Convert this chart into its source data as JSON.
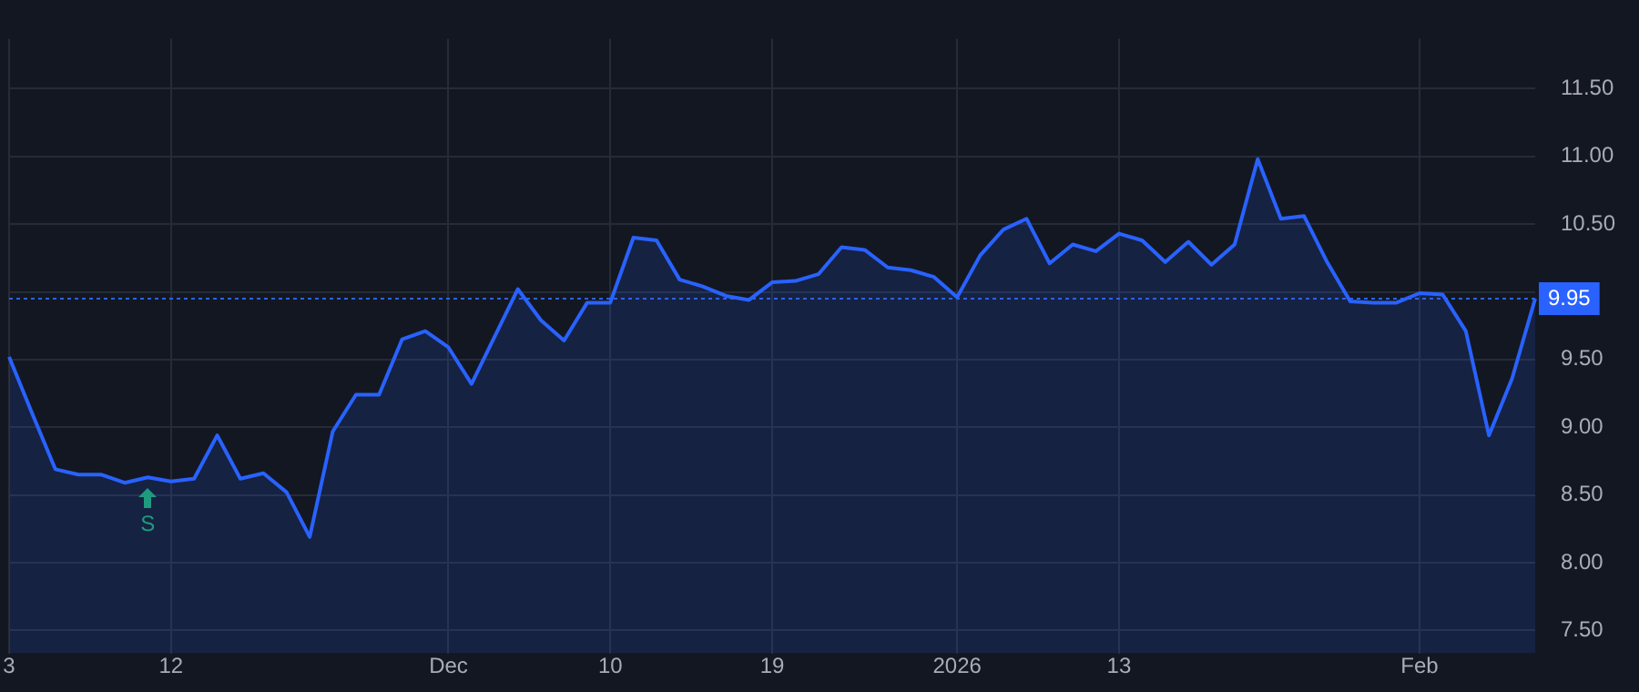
{
  "chart_data": {
    "type": "area",
    "categories": [
      "3",
      null,
      null,
      null,
      null,
      null,
      null,
      "12",
      null,
      null,
      null,
      null,
      null,
      null,
      null,
      null,
      null,
      null,
      null,
      "Dec",
      null,
      null,
      null,
      null,
      null,
      null,
      "10",
      null,
      null,
      null,
      null,
      null,
      null,
      "19",
      null,
      null,
      null,
      null,
      null,
      null,
      null,
      "2026",
      null,
      null,
      null,
      null,
      null,
      null,
      "13",
      null,
      null,
      null,
      null,
      null,
      null,
      null,
      null,
      null,
      null,
      null,
      null,
      "Feb",
      null,
      null,
      null,
      null,
      null
    ],
    "series": [
      {
        "color": "#2962ff",
        "values": [
          9.52,
          9.1,
          8.69,
          8.65,
          8.65,
          8.59,
          8.63,
          8.6,
          8.62,
          8.94,
          8.62,
          8.66,
          8.52,
          8.19,
          8.97,
          9.24,
          9.24,
          9.65,
          9.71,
          9.59,
          9.32,
          9.67,
          10.02,
          9.79,
          9.64,
          9.92,
          9.92,
          10.4,
          10.38,
          10.09,
          10.04,
          9.97,
          9.94,
          10.07,
          10.08,
          10.13,
          10.33,
          10.31,
          10.18,
          10.16,
          10.11,
          9.96,
          10.27,
          10.46,
          10.54,
          10.21,
          10.35,
          10.3,
          10.43,
          10.38,
          10.22,
          10.37,
          10.2,
          10.35,
          10.98,
          10.54,
          10.56,
          10.22,
          9.93,
          9.92,
          9.92,
          9.99,
          9.98,
          9.71,
          8.94,
          9.36,
          9.95
        ]
      }
    ],
    "ylim": [
      7.33,
      11.87
    ],
    "yticks": [
      {
        "value": 7.5,
        "label": "7.50"
      },
      {
        "value": 8,
        "label": "8.00"
      },
      {
        "value": 8.5,
        "label": "8.50"
      },
      {
        "value": 9,
        "label": "9.00"
      },
      {
        "value": 9.5,
        "label": "9.50"
      },
      {
        "value": 10,
        "label": null
      },
      {
        "value": 10.5,
        "label": "10.50"
      },
      {
        "value": 11,
        "label": "11.00"
      },
      {
        "value": 11.5,
        "label": "11.50"
      }
    ],
    "ref_lines": [
      {
        "axis": "y",
        "value": 9.95,
        "label": "9.95",
        "color": "#2962ff",
        "line_style": "dotted"
      }
    ],
    "annotations": [
      "S"
    ],
    "grid": true,
    "legend": false
  }
}
